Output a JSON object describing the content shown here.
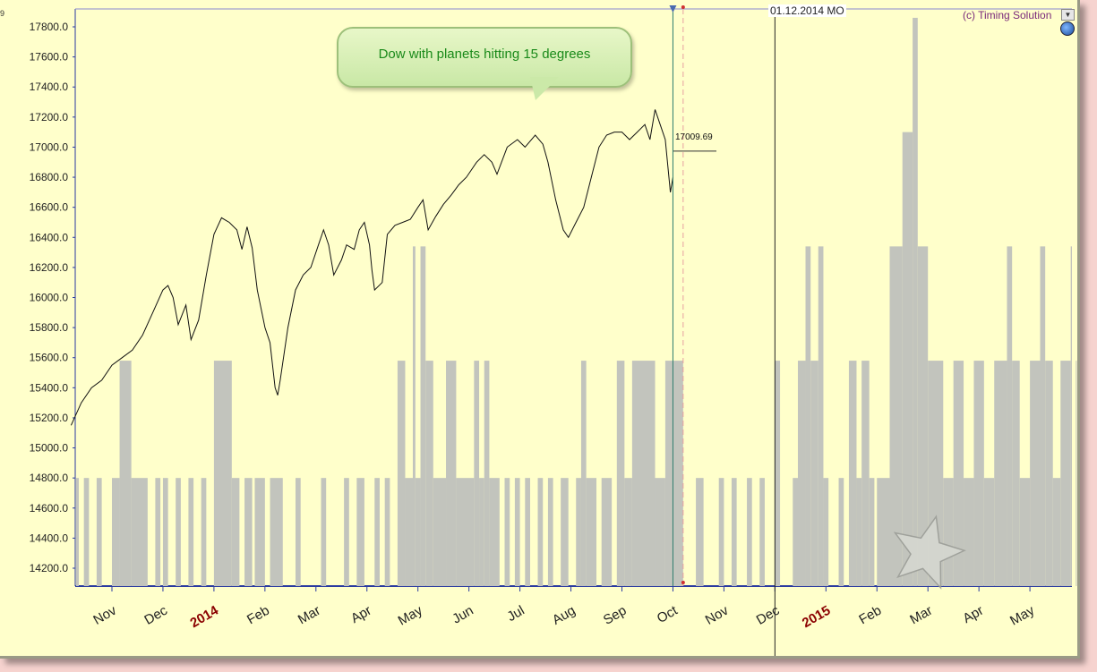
{
  "chart_data": {
    "type": "line",
    "title": "",
    "annotation": "Dow with planets hitting 15 degrees",
    "copyright": "(c) Timing Solution",
    "cursor_date_label": "01.12.2014 MO",
    "last_price_label": "17009.69",
    "ylim": [
      14060,
      17880
    ],
    "y_ticks": [
      "17800.0",
      "17600.0",
      "17400.0",
      "17200.0",
      "17000.0",
      "16800.0",
      "16600.0",
      "16400.0",
      "16200.0",
      "16000.0",
      "15800.0",
      "15600.0",
      "15400.0",
      "15200.0",
      "15000.0",
      "14800.0",
      "14600.0",
      "14400.0",
      "14200.0"
    ],
    "x_ticks": [
      {
        "label": "Nov",
        "month": 0,
        "year": false
      },
      {
        "label": "Dec",
        "month": 1,
        "year": false
      },
      {
        "label": "2014",
        "month": 2,
        "year": true
      },
      {
        "label": "Feb",
        "month": 3,
        "year": false
      },
      {
        "label": "Mar",
        "month": 4,
        "year": false
      },
      {
        "label": "Apr",
        "month": 5,
        "year": false
      },
      {
        "label": "May",
        "month": 6,
        "year": false
      },
      {
        "label": "Jun",
        "month": 7,
        "year": false
      },
      {
        "label": "Jul",
        "month": 8,
        "year": false
      },
      {
        "label": "Aug",
        "month": 9,
        "year": false
      },
      {
        "label": "Sep",
        "month": 10,
        "year": false
      },
      {
        "label": "Oct",
        "month": 11,
        "year": false
      },
      {
        "label": "Nov",
        "month": 12,
        "year": false
      },
      {
        "label": "Dec",
        "month": 13,
        "year": false
      },
      {
        "label": "2015",
        "month": 14,
        "year": true
      },
      {
        "label": "Feb",
        "month": 15,
        "year": false
      },
      {
        "label": "Mar",
        "month": 16,
        "year": false
      },
      {
        "label": "Apr",
        "month": 17,
        "year": false
      },
      {
        "label": "May",
        "month": 18,
        "year": false
      }
    ],
    "price_series": {
      "name": "Dow",
      "points": [
        [
          -0.8,
          15150
        ],
        [
          -0.6,
          15300
        ],
        [
          -0.4,
          15400
        ],
        [
          -0.2,
          15450
        ],
        [
          0.0,
          15550
        ],
        [
          0.2,
          15600
        ],
        [
          0.4,
          15650
        ],
        [
          0.6,
          15750
        ],
        [
          0.8,
          15900
        ],
        [
          1.0,
          16050
        ],
        [
          1.1,
          16080
        ],
        [
          1.2,
          16000
        ],
        [
          1.3,
          15820
        ],
        [
          1.45,
          15950
        ],
        [
          1.55,
          15720
        ],
        [
          1.7,
          15850
        ],
        [
          1.85,
          16150
        ],
        [
          2.0,
          16420
        ],
        [
          2.15,
          16530
        ],
        [
          2.3,
          16500
        ],
        [
          2.45,
          16450
        ],
        [
          2.55,
          16320
        ],
        [
          2.65,
          16470
        ],
        [
          2.75,
          16330
        ],
        [
          2.85,
          16050
        ],
        [
          3.0,
          15800
        ],
        [
          3.1,
          15700
        ],
        [
          3.2,
          15400
        ],
        [
          3.25,
          15350
        ],
        [
          3.3,
          15450
        ],
        [
          3.45,
          15800
        ],
        [
          3.6,
          16050
        ],
        [
          3.75,
          16150
        ],
        [
          3.9,
          16200
        ],
        [
          4.05,
          16350
        ],
        [
          4.15,
          16450
        ],
        [
          4.25,
          16350
        ],
        [
          4.35,
          16150
        ],
        [
          4.5,
          16250
        ],
        [
          4.6,
          16350
        ],
        [
          4.75,
          16320
        ],
        [
          4.85,
          16450
        ],
        [
          4.95,
          16500
        ],
        [
          5.05,
          16350
        ],
        [
          5.1,
          16180
        ],
        [
          5.15,
          16050
        ],
        [
          5.3,
          16100
        ],
        [
          5.4,
          16420
        ],
        [
          5.55,
          16480
        ],
        [
          5.7,
          16500
        ],
        [
          5.85,
          16520
        ],
        [
          6.0,
          16600
        ],
        [
          6.1,
          16650
        ],
        [
          6.2,
          16450
        ],
        [
          6.35,
          16540
        ],
        [
          6.5,
          16620
        ],
        [
          6.65,
          16680
        ],
        [
          6.8,
          16750
        ],
        [
          6.95,
          16800
        ],
        [
          7.15,
          16900
        ],
        [
          7.3,
          16950
        ],
        [
          7.45,
          16900
        ],
        [
          7.55,
          16820
        ],
        [
          7.75,
          17000
        ],
        [
          7.95,
          17050
        ],
        [
          8.1,
          17000
        ],
        [
          8.3,
          17080
        ],
        [
          8.45,
          17020
        ],
        [
          8.55,
          16900
        ],
        [
          8.7,
          16650
        ],
        [
          8.85,
          16450
        ],
        [
          8.95,
          16400
        ],
        [
          9.1,
          16500
        ],
        [
          9.25,
          16600
        ],
        [
          9.4,
          16800
        ],
        [
          9.55,
          17000
        ],
        [
          9.7,
          17080
        ],
        [
          9.85,
          17100
        ],
        [
          10.0,
          17100
        ],
        [
          10.15,
          17050
        ],
        [
          10.3,
          17100
        ],
        [
          10.45,
          17150
        ],
        [
          10.55,
          17050
        ],
        [
          10.65,
          17250
        ],
        [
          10.75,
          17150
        ],
        [
          10.85,
          17050
        ],
        [
          10.95,
          16700
        ],
        [
          11.0,
          16800
        ]
      ]
    },
    "indicator": {
      "name": "planets hitting 15 degrees",
      "levels": [
        14800,
        15580,
        16340,
        17100,
        17860
      ],
      "levels_note": "step values shown as grey histogram bars",
      "segments": [
        [
          -0.8,
          -0.65,
          14800
        ],
        [
          -0.55,
          -0.45,
          14800
        ],
        [
          -0.3,
          -0.2,
          14800
        ],
        [
          0.0,
          0.15,
          14800
        ],
        [
          0.15,
          0.38,
          15580
        ],
        [
          0.38,
          0.7,
          14800
        ],
        [
          0.85,
          0.95,
          14800
        ],
        [
          1.0,
          1.1,
          14800
        ],
        [
          1.25,
          1.35,
          14800
        ],
        [
          1.5,
          1.6,
          14800
        ],
        [
          1.75,
          1.85,
          14800
        ],
        [
          2.0,
          2.35,
          15580
        ],
        [
          2.35,
          2.5,
          14800
        ],
        [
          2.6,
          2.75,
          14800
        ],
        [
          2.8,
          3.0,
          14800
        ],
        [
          3.1,
          3.35,
          14800
        ],
        [
          3.6,
          3.7,
          14800
        ],
        [
          4.1,
          4.2,
          14800
        ],
        [
          4.55,
          4.65,
          14800
        ],
        [
          4.8,
          4.95,
          14800
        ],
        [
          5.15,
          5.25,
          14800
        ],
        [
          5.35,
          5.45,
          14800
        ],
        [
          5.6,
          5.75,
          15580
        ],
        [
          5.75,
          5.9,
          14800
        ],
        [
          5.9,
          5.95,
          16340
        ],
        [
          5.95,
          6.05,
          14800
        ],
        [
          6.05,
          6.15,
          16340
        ],
        [
          6.15,
          6.3,
          15580
        ],
        [
          6.3,
          6.55,
          14800
        ],
        [
          6.55,
          6.75,
          15580
        ],
        [
          6.75,
          7.1,
          14800
        ],
        [
          7.1,
          7.2,
          15580
        ],
        [
          7.2,
          7.3,
          14800
        ],
        [
          7.3,
          7.4,
          15580
        ],
        [
          7.4,
          7.6,
          14800
        ],
        [
          7.7,
          7.8,
          14800
        ],
        [
          7.9,
          8.0,
          14800
        ],
        [
          8.1,
          8.2,
          14800
        ],
        [
          8.35,
          8.45,
          14800
        ],
        [
          8.55,
          8.65,
          14800
        ],
        [
          8.8,
          8.95,
          14800
        ],
        [
          9.1,
          9.2,
          14800
        ],
        [
          9.2,
          9.3,
          15580
        ],
        [
          9.3,
          9.5,
          14800
        ],
        [
          9.6,
          9.8,
          14800
        ],
        [
          9.9,
          10.05,
          15580
        ],
        [
          10.05,
          10.2,
          14800
        ],
        [
          10.2,
          10.65,
          15580
        ],
        [
          10.65,
          10.85,
          14800
        ],
        [
          10.85,
          11.2,
          15580
        ],
        [
          11.45,
          11.6,
          14800
        ],
        [
          11.9,
          12.0,
          14800
        ],
        [
          12.15,
          12.25,
          14800
        ],
        [
          12.45,
          12.55,
          14800
        ],
        [
          12.7,
          12.8,
          14800
        ],
        [
          13.0,
          13.1,
          15580
        ],
        [
          13.35,
          13.45,
          14800
        ],
        [
          13.45,
          13.6,
          15580
        ],
        [
          13.6,
          13.7,
          16340
        ],
        [
          13.7,
          13.85,
          15580
        ],
        [
          13.85,
          13.95,
          16340
        ],
        [
          13.95,
          14.05,
          14800
        ],
        [
          14.25,
          14.35,
          14800
        ],
        [
          14.45,
          14.6,
          15580
        ],
        [
          14.6,
          14.7,
          14800
        ],
        [
          14.7,
          14.85,
          15580
        ],
        [
          14.85,
          14.95,
          14800
        ],
        [
          15.0,
          15.25,
          14800
        ],
        [
          15.25,
          15.5,
          16340
        ],
        [
          15.5,
          15.7,
          17100
        ],
        [
          15.7,
          15.8,
          17860
        ],
        [
          15.8,
          16.0,
          16340
        ],
        [
          16.0,
          16.3,
          15580
        ],
        [
          16.3,
          16.5,
          14800
        ],
        [
          16.5,
          16.7,
          15580
        ],
        [
          16.7,
          16.9,
          14800
        ],
        [
          16.9,
          17.1,
          15580
        ],
        [
          17.1,
          17.3,
          14800
        ],
        [
          17.3,
          17.55,
          15580
        ],
        [
          17.55,
          17.65,
          16340
        ],
        [
          17.65,
          17.8,
          15580
        ],
        [
          17.8,
          18.0,
          14800
        ],
        [
          18.0,
          18.2,
          15580
        ],
        [
          18.2,
          18.3,
          16340
        ],
        [
          18.3,
          18.45,
          15580
        ],
        [
          18.45,
          18.6,
          14800
        ],
        [
          18.6,
          18.8,
          15580
        ],
        [
          18.8,
          18.9,
          16340
        ],
        [
          18.9,
          19.05,
          15580
        ],
        [
          19.05,
          19.1,
          14800
        ]
      ]
    },
    "vertical_markers": [
      {
        "name": "last-bar-line",
        "month": 11.0,
        "color": "#2e7d6e"
      },
      {
        "name": "forecast-dashed-line",
        "month": 11.2,
        "color": "#e8a0a0"
      },
      {
        "name": "cursor-line",
        "month": 13.0,
        "color": "#222222"
      }
    ],
    "colors": {
      "background": "#ffffcb",
      "indicator": "#c2c4bd",
      "price": "#111111",
      "axis": "#2a3aa0"
    }
  }
}
